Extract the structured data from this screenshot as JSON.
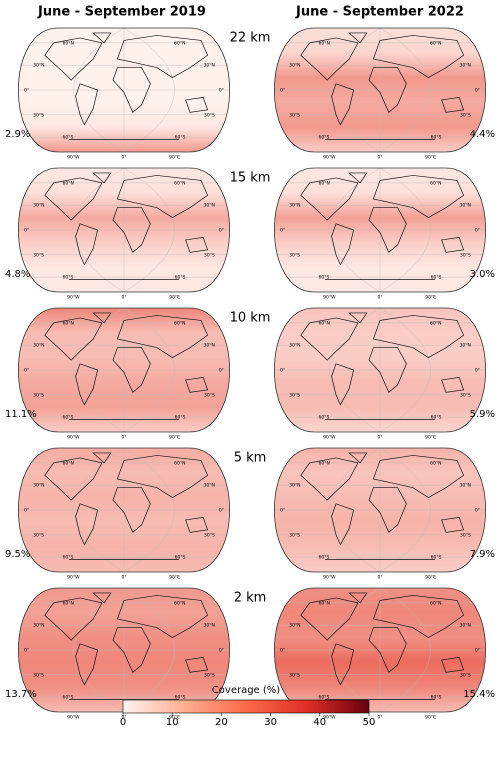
{
  "columns": [
    "June - September 2019",
    "June - September 2022"
  ],
  "rows": [
    {
      "altitude": "22 km",
      "coverage": [
        "2.9%",
        "4.4%"
      ]
    },
    {
      "altitude": "15 km",
      "coverage": [
        "4.8%",
        "3.0%"
      ]
    },
    {
      "altitude": "10 km",
      "coverage": [
        "11.1%",
        "5.9%"
      ]
    },
    {
      "altitude": "5 km",
      "coverage": [
        "9.5%",
        "7.9%"
      ]
    },
    {
      "altitude": "2 km",
      "coverage": [
        "13.7%",
        "15.4%"
      ]
    }
  ],
  "map_labels": {
    "lat": [
      "60°N",
      "30°N",
      "0°",
      "30°S",
      "60°S"
    ],
    "lon": [
      "90°W",
      "0°",
      "90°E"
    ]
  },
  "colorbar": {
    "label": "Coverage (%)",
    "lim": [
      0,
      50
    ],
    "ticks": [
      0,
      10,
      20,
      30,
      40,
      50
    ]
  }
}
